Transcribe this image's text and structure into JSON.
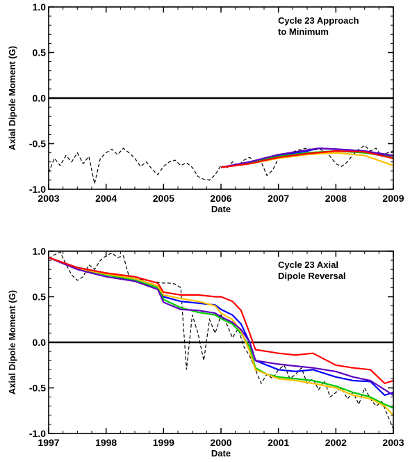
{
  "chart_data": [
    {
      "type": "line",
      "annotation": [
        "Cycle 23 Approach",
        "to Minimum"
      ],
      "xlabel": "Date",
      "ylabel": "Axial Dipole Moment (G)",
      "xlim": [
        2003,
        2009
      ],
      "ylim": [
        -1.0,
        1.0
      ],
      "xticks": [
        2003,
        2004,
        2005,
        2006,
        2007,
        2008,
        2009
      ],
      "xtick_labels": [
        "2003",
        "2004",
        "2005",
        "2006",
        "2007",
        "2008",
        "2009"
      ],
      "yticks": [
        -1.0,
        -0.5,
        0.0,
        0.5,
        1.0
      ],
      "ytick_labels": [
        "-1.0",
        "-0.5",
        "0.0",
        "0.5",
        "1.0"
      ],
      "zero_line": true,
      "observed": {
        "style": "dashed",
        "color": "#000000",
        "x": [
          2003.0,
          2003.1,
          2003.2,
          2003.3,
          2003.4,
          2003.5,
          2003.6,
          2003.7,
          2003.8,
          2003.9,
          2004.0,
          2004.1,
          2004.2,
          2004.3,
          2004.4,
          2004.5,
          2004.6,
          2004.7,
          2004.8,
          2004.9,
          2005.0,
          2005.1,
          2005.2,
          2005.3,
          2005.4,
          2005.5,
          2005.6,
          2005.7,
          2005.8,
          2005.9,
          2006.0,
          2006.1,
          2006.2,
          2006.3,
          2006.4,
          2006.5,
          2006.6,
          2006.7,
          2006.8,
          2006.9,
          2007.0,
          2007.1,
          2007.2,
          2007.3,
          2007.4,
          2007.5,
          2007.6,
          2007.7,
          2007.8,
          2007.9,
          2008.0,
          2008.1,
          2008.2,
          2008.3,
          2008.4,
          2008.5,
          2008.6,
          2008.7,
          2008.8,
          2008.9,
          2009.0
        ],
        "y": [
          -0.82,
          -0.66,
          -0.74,
          -0.63,
          -0.7,
          -0.6,
          -0.72,
          -0.64,
          -0.94,
          -0.66,
          -0.6,
          -0.56,
          -0.62,
          -0.55,
          -0.6,
          -0.66,
          -0.75,
          -0.7,
          -0.78,
          -0.84,
          -0.75,
          -0.7,
          -0.68,
          -0.74,
          -0.71,
          -0.76,
          -0.86,
          -0.89,
          -0.9,
          -0.84,
          -0.74,
          -0.77,
          -0.7,
          -0.74,
          -0.68,
          -0.65,
          -0.71,
          -0.7,
          -0.85,
          -0.79,
          -0.66,
          -0.62,
          -0.6,
          -0.58,
          -0.56,
          -0.55,
          -0.57,
          -0.56,
          -0.58,
          -0.64,
          -0.72,
          -0.75,
          -0.7,
          -0.62,
          -0.56,
          -0.52,
          -0.58,
          -0.55,
          -0.64,
          -0.6,
          -0.58
        ]
      },
      "series": [
        {
          "color": "#0000ff",
          "x": [
            2006.0,
            2006.5,
            2007.0,
            2007.5,
            2007.7,
            2008.0,
            2008.5,
            2009.0
          ],
          "y": [
            -0.76,
            -0.7,
            -0.63,
            -0.58,
            -0.55,
            -0.56,
            -0.58,
            -0.65
          ]
        },
        {
          "color": "#00c800",
          "x": [
            2006.0,
            2006.5,
            2007.0,
            2007.5,
            2008.0,
            2008.5,
            2009.0
          ],
          "y": [
            -0.76,
            -0.71,
            -0.64,
            -0.6,
            -0.58,
            -0.6,
            -0.65
          ]
        },
        {
          "color": "#ffbf00",
          "x": [
            2006.0,
            2006.5,
            2007.0,
            2007.5,
            2008.0,
            2008.5,
            2009.0
          ],
          "y": [
            -0.76,
            -0.72,
            -0.66,
            -0.62,
            -0.6,
            -0.63,
            -0.74
          ]
        },
        {
          "color": "#6000c0",
          "x": [
            2006.0,
            2006.5,
            2007.0,
            2007.5,
            2007.7,
            2008.0,
            2008.5,
            2009.0
          ],
          "y": [
            -0.76,
            -0.7,
            -0.62,
            -0.57,
            -0.55,
            -0.56,
            -0.58,
            -0.63
          ]
        },
        {
          "color": "#ff0000",
          "x": [
            2006.0,
            2006.5,
            2007.0,
            2007.5,
            2008.0,
            2008.5,
            2009.0
          ],
          "y": [
            -0.76,
            -0.72,
            -0.65,
            -0.61,
            -0.58,
            -0.59,
            -0.66
          ]
        }
      ]
    },
    {
      "type": "line",
      "annotation": [
        "Cycle 23 Axial",
        "Dipole Reversal"
      ],
      "xlabel": "Date",
      "ylabel": "Axial Dipole Moment (G)",
      "xlim": [
        1997,
        2003
      ],
      "ylim": [
        -1.0,
        1.0
      ],
      "xticks": [
        1997,
        1998,
        1999,
        2000,
        2001,
        2002,
        2003
      ],
      "xtick_labels": [
        "1997",
        "1998",
        "1999",
        "2000",
        "2001",
        "2002",
        "2003"
      ],
      "yticks": [
        -1.0,
        -0.5,
        0.0,
        0.5,
        1.0
      ],
      "ytick_labels": [
        "-1.0",
        "-0.5",
        "0.0",
        "0.5",
        "1.0"
      ],
      "zero_line": true,
      "observed": {
        "style": "dashed",
        "color": "#000000",
        "x": [
          1997.0,
          1997.1,
          1997.2,
          1997.3,
          1997.4,
          1997.5,
          1997.6,
          1997.7,
          1997.8,
          1997.9,
          1998.0,
          1998.1,
          1998.2,
          1998.3,
          1998.4,
          1998.5,
          1998.6,
          1998.7,
          1998.8,
          1998.9,
          1999.0,
          1999.1,
          1999.2,
          1999.3,
          1999.4,
          1999.5,
          1999.6,
          1999.7,
          1999.8,
          1999.9,
          2000.0,
          2000.1,
          2000.2,
          2000.3,
          2000.4,
          2000.5,
          2000.6,
          2000.7,
          2000.8,
          2000.9,
          2001.0,
          2001.1,
          2001.2,
          2001.3,
          2001.4,
          2001.5,
          2001.6,
          2001.7,
          2001.8,
          2001.9,
          2002.0,
          2002.1,
          2002.2,
          2002.3,
          2002.4,
          2002.5,
          2002.6,
          2002.7,
          2002.8,
          2002.9,
          2003.0
        ],
        "y": [
          0.92,
          0.96,
          0.99,
          0.86,
          0.74,
          0.68,
          0.72,
          0.85,
          0.8,
          0.9,
          0.95,
          0.98,
          0.93,
          0.95,
          0.72,
          0.7,
          0.69,
          0.68,
          0.67,
          0.66,
          0.65,
          0.65,
          0.64,
          0.6,
          -0.3,
          0.3,
          0.1,
          -0.2,
          0.25,
          0.1,
          0.3,
          0.2,
          0.05,
          0.15,
          -0.05,
          -0.15,
          -0.3,
          -0.45,
          -0.35,
          -0.4,
          -0.3,
          -0.25,
          -0.4,
          -0.35,
          -0.28,
          -0.45,
          -0.4,
          -0.52,
          -0.42,
          -0.6,
          -0.55,
          -0.5,
          -0.62,
          -0.55,
          -0.68,
          -0.5,
          -0.62,
          -0.7,
          -0.65,
          -0.8,
          -0.95
        ]
      },
      "series": [
        {
          "color": "#0000ff",
          "x": [
            1997.0,
            1997.5,
            1998.0,
            1998.5,
            1998.9,
            1999.0,
            1999.3,
            1999.6,
            1999.9,
            2000.0,
            2000.2,
            2000.35,
            2000.5,
            2000.6,
            2000.8,
            2001.0,
            2001.3,
            2001.6,
            2002.0,
            2002.3,
            2002.6,
            2002.85,
            2003.0
          ],
          "y": [
            0.93,
            0.82,
            0.76,
            0.7,
            0.62,
            0.5,
            0.45,
            0.43,
            0.41,
            0.36,
            0.3,
            0.2,
            0.0,
            -0.2,
            -0.25,
            -0.3,
            -0.32,
            -0.3,
            -0.38,
            -0.42,
            -0.43,
            -0.58,
            -0.55
          ]
        },
        {
          "color": "#00c800",
          "x": [
            1997.0,
            1997.5,
            1998.0,
            1998.5,
            1998.9,
            1999.0,
            1999.3,
            1999.6,
            1999.9,
            2000.0,
            2000.2,
            2000.35,
            2000.5,
            2000.6,
            2000.8,
            2001.0,
            2001.3,
            2001.6,
            2002.0,
            2002.3,
            2002.6,
            2002.85,
            2003.0
          ],
          "y": [
            0.93,
            0.81,
            0.74,
            0.68,
            0.6,
            0.47,
            0.38,
            0.33,
            0.3,
            0.26,
            0.2,
            0.1,
            -0.05,
            -0.28,
            -0.35,
            -0.38,
            -0.4,
            -0.42,
            -0.48,
            -0.55,
            -0.6,
            -0.68,
            -0.72
          ]
        },
        {
          "color": "#ffbf00",
          "x": [
            1997.0,
            1997.5,
            1998.0,
            1998.5,
            1998.9,
            1999.0,
            1999.3,
            1999.6,
            1999.9,
            2000.0,
            2000.2,
            2000.35,
            2000.5,
            2000.6,
            2000.8,
            2001.0,
            2001.3,
            2001.6,
            2002.0,
            2002.3,
            2002.6,
            2002.85,
            2003.0
          ],
          "y": [
            0.93,
            0.81,
            0.75,
            0.7,
            0.62,
            0.52,
            0.48,
            0.45,
            0.4,
            0.32,
            0.25,
            0.12,
            -0.1,
            -0.3,
            -0.35,
            -0.4,
            -0.42,
            -0.45,
            -0.5,
            -0.58,
            -0.62,
            -0.7,
            -0.8
          ]
        },
        {
          "color": "#6000c0",
          "x": [
            1997.0,
            1997.5,
            1998.0,
            1998.5,
            1998.9,
            1999.0,
            1999.3,
            1999.6,
            1999.9,
            2000.0,
            2000.2,
            2000.35,
            2000.5,
            2000.6,
            2000.8,
            2001.0,
            2001.3,
            2001.6,
            2002.0,
            2002.3,
            2002.6,
            2002.85,
            2003.0
          ],
          "y": [
            0.93,
            0.8,
            0.72,
            0.67,
            0.58,
            0.44,
            0.36,
            0.35,
            0.32,
            0.28,
            0.22,
            0.14,
            0.0,
            -0.2,
            -0.22,
            -0.24,
            -0.26,
            -0.28,
            -0.32,
            -0.38,
            -0.42,
            -0.52,
            -0.58
          ]
        },
        {
          "color": "#ff0000",
          "x": [
            1997.0,
            1997.5,
            1998.0,
            1998.5,
            1998.9,
            1999.0,
            1999.3,
            1999.6,
            1999.9,
            2000.0,
            2000.2,
            2000.35,
            2000.5,
            2000.6,
            2000.8,
            2001.0,
            2001.3,
            2001.6,
            2002.0,
            2002.3,
            2002.6,
            2002.85,
            2003.0
          ],
          "y": [
            0.93,
            0.82,
            0.76,
            0.72,
            0.65,
            0.55,
            0.52,
            0.52,
            0.5,
            0.5,
            0.45,
            0.35,
            0.1,
            -0.08,
            -0.1,
            -0.12,
            -0.14,
            -0.12,
            -0.25,
            -0.28,
            -0.3,
            -0.45,
            -0.42
          ]
        }
      ]
    }
  ]
}
